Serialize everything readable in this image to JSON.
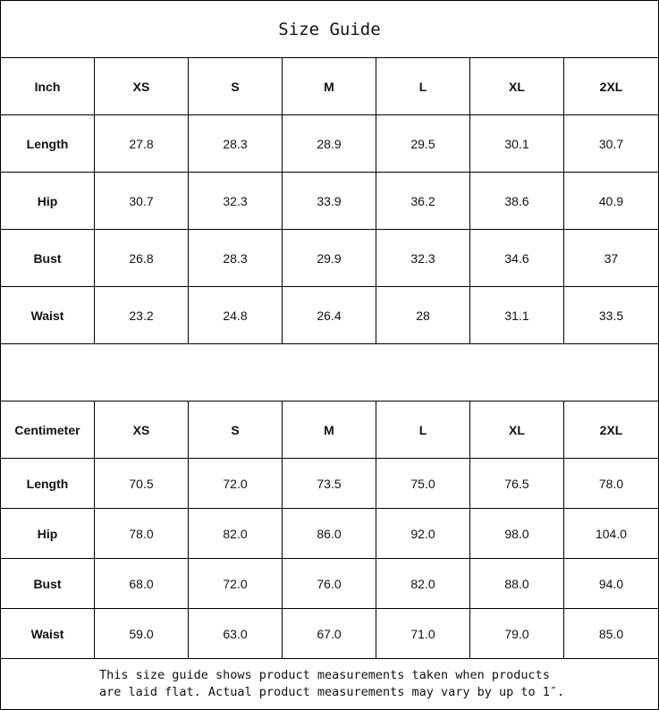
{
  "title": "Size Guide",
  "inch": {
    "header": [
      "Inch",
      "XS",
      "S",
      "M",
      "L",
      "XL",
      "2XL"
    ],
    "rows": [
      [
        "Length",
        "27.8",
        "28.3",
        "28.9",
        "29.5",
        "30.1",
        "30.7"
      ],
      [
        "Hip",
        "30.7",
        "32.3",
        "33.9",
        "36.2",
        "38.6",
        "40.9"
      ],
      [
        "Bust",
        "26.8",
        "28.3",
        "29.9",
        "32.3",
        "34.6",
        "37"
      ],
      [
        "Waist",
        "23.2",
        "24.8",
        "26.4",
        "28",
        "31.1",
        "33.5"
      ]
    ]
  },
  "cm": {
    "header": [
      "Centimeter",
      "XS",
      "S",
      "M",
      "L",
      "XL",
      "2XL"
    ],
    "rows": [
      [
        "Length",
        "70.5",
        "72.0",
        "73.5",
        "75.0",
        "76.5",
        "78.0"
      ],
      [
        "Hip",
        "78.0",
        "82.0",
        "86.0",
        "92.0",
        "98.0",
        "104.0"
      ],
      [
        "Bust",
        "68.0",
        "72.0",
        "76.0",
        "82.0",
        "88.0",
        "94.0"
      ],
      [
        "Waist",
        "59.0",
        "63.0",
        "67.0",
        "71.0",
        "79.0",
        "85.0"
      ]
    ]
  },
  "note": {
    "line1": "This size guide shows product measurements taken when products",
    "line2": "are laid flat. Actual product measurements may vary by up to 1″."
  }
}
